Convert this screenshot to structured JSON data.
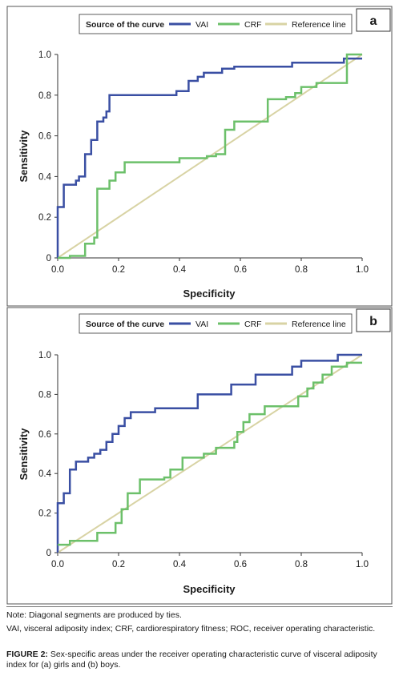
{
  "chart_data": [
    {
      "type": "line",
      "panel": "a",
      "legend": {
        "title": "Source of the curve",
        "position": "top",
        "entries": [
          {
            "name": "VAI",
            "color": "#3a4fa3"
          },
          {
            "name": "CRF",
            "color": "#6cc06a"
          },
          {
            "name": "Reference line",
            "color": "#d8d3a4"
          }
        ]
      },
      "xlabel": "Specificity",
      "ylabel": "Sensitivity",
      "xlim": [
        0,
        1
      ],
      "ylim": [
        0,
        1
      ],
      "xticks": [
        "0.0",
        "0.2",
        "0.4",
        "0.6",
        "0.8",
        "1.0"
      ],
      "yticks": [
        "0",
        "0.2",
        "0.4",
        "0.6",
        "0.8",
        "1.0"
      ],
      "grid": false,
      "series": [
        {
          "name": "VAI",
          "color": "#3a4fa3",
          "points": [
            [
              0,
              0
            ],
            [
              0,
              0.25
            ],
            [
              0.02,
              0.25
            ],
            [
              0.02,
              0.36
            ],
            [
              0.06,
              0.36
            ],
            [
              0.06,
              0.38
            ],
            [
              0.07,
              0.38
            ],
            [
              0.07,
              0.4
            ],
            [
              0.09,
              0.4
            ],
            [
              0.09,
              0.51
            ],
            [
              0.11,
              0.51
            ],
            [
              0.11,
              0.58
            ],
            [
              0.13,
              0.58
            ],
            [
              0.13,
              0.67
            ],
            [
              0.15,
              0.67
            ],
            [
              0.15,
              0.69
            ],
            [
              0.16,
              0.69
            ],
            [
              0.16,
              0.72
            ],
            [
              0.17,
              0.72
            ],
            [
              0.17,
              0.8
            ],
            [
              0.39,
              0.8
            ],
            [
              0.39,
              0.82
            ],
            [
              0.43,
              0.82
            ],
            [
              0.43,
              0.87
            ],
            [
              0.46,
              0.87
            ],
            [
              0.46,
              0.89
            ],
            [
              0.48,
              0.89
            ],
            [
              0.48,
              0.91
            ],
            [
              0.54,
              0.91
            ],
            [
              0.54,
              0.93
            ],
            [
              0.58,
              0.93
            ],
            [
              0.58,
              0.94
            ],
            [
              0.77,
              0.94
            ],
            [
              0.77,
              0.96
            ],
            [
              0.94,
              0.96
            ],
            [
              0.94,
              0.98
            ],
            [
              1.0,
              0.98
            ]
          ]
        },
        {
          "name": "CRF",
          "color": "#6cc06a",
          "points": [
            [
              0,
              0
            ],
            [
              0.04,
              0
            ],
            [
              0.04,
              0.01
            ],
            [
              0.09,
              0.01
            ],
            [
              0.09,
              0.07
            ],
            [
              0.12,
              0.07
            ],
            [
              0.12,
              0.1
            ],
            [
              0.13,
              0.1
            ],
            [
              0.13,
              0.34
            ],
            [
              0.17,
              0.34
            ],
            [
              0.17,
              0.38
            ],
            [
              0.19,
              0.38
            ],
            [
              0.19,
              0.42
            ],
            [
              0.22,
              0.42
            ],
            [
              0.22,
              0.47
            ],
            [
              0.4,
              0.47
            ],
            [
              0.4,
              0.49
            ],
            [
              0.49,
              0.49
            ],
            [
              0.49,
              0.5
            ],
            [
              0.52,
              0.5
            ],
            [
              0.52,
              0.51
            ],
            [
              0.55,
              0.51
            ],
            [
              0.55,
              0.63
            ],
            [
              0.58,
              0.63
            ],
            [
              0.58,
              0.67
            ],
            [
              0.69,
              0.67
            ],
            [
              0.69,
              0.78
            ],
            [
              0.75,
              0.78
            ],
            [
              0.75,
              0.79
            ],
            [
              0.78,
              0.79
            ],
            [
              0.78,
              0.81
            ],
            [
              0.8,
              0.81
            ],
            [
              0.8,
              0.84
            ],
            [
              0.85,
              0.84
            ],
            [
              0.85,
              0.86
            ],
            [
              0.95,
              0.86
            ],
            [
              0.95,
              1.0
            ],
            [
              1.0,
              1.0
            ]
          ]
        },
        {
          "name": "Reference line",
          "color": "#d8d3a4",
          "points": [
            [
              0,
              0
            ],
            [
              1,
              1
            ]
          ]
        }
      ]
    },
    {
      "type": "line",
      "panel": "b",
      "legend": {
        "title": "Source of the curve",
        "position": "top",
        "entries": [
          {
            "name": "VAI",
            "color": "#3a4fa3"
          },
          {
            "name": "CRF",
            "color": "#6cc06a"
          },
          {
            "name": "Reference line",
            "color": "#d8d3a4"
          }
        ]
      },
      "xlabel": "Specificity",
      "ylabel": "Sensitivity",
      "xlim": [
        0,
        1
      ],
      "ylim": [
        0,
        1
      ],
      "xticks": [
        "0.0",
        "0.2",
        "0.4",
        "0.6",
        "0.8",
        "1.0"
      ],
      "yticks": [
        "0",
        "0.2",
        "0.4",
        "0.6",
        "0.8",
        "1.0"
      ],
      "grid": false,
      "series": [
        {
          "name": "VAI",
          "color": "#3a4fa3",
          "points": [
            [
              0,
              0
            ],
            [
              0,
              0.25
            ],
            [
              0.02,
              0.25
            ],
            [
              0.02,
              0.3
            ],
            [
              0.04,
              0.3
            ],
            [
              0.04,
              0.42
            ],
            [
              0.06,
              0.42
            ],
            [
              0.06,
              0.46
            ],
            [
              0.1,
              0.46
            ],
            [
              0.1,
              0.48
            ],
            [
              0.12,
              0.48
            ],
            [
              0.12,
              0.5
            ],
            [
              0.14,
              0.5
            ],
            [
              0.14,
              0.52
            ],
            [
              0.16,
              0.52
            ],
            [
              0.16,
              0.56
            ],
            [
              0.18,
              0.56
            ],
            [
              0.18,
              0.6
            ],
            [
              0.2,
              0.6
            ],
            [
              0.2,
              0.64
            ],
            [
              0.22,
              0.64
            ],
            [
              0.22,
              0.68
            ],
            [
              0.24,
              0.68
            ],
            [
              0.24,
              0.71
            ],
            [
              0.32,
              0.71
            ],
            [
              0.32,
              0.73
            ],
            [
              0.46,
              0.73
            ],
            [
              0.46,
              0.8
            ],
            [
              0.57,
              0.8
            ],
            [
              0.57,
              0.85
            ],
            [
              0.65,
              0.85
            ],
            [
              0.65,
              0.9
            ],
            [
              0.77,
              0.9
            ],
            [
              0.77,
              0.94
            ],
            [
              0.8,
              0.94
            ],
            [
              0.8,
              0.97
            ],
            [
              0.92,
              0.97
            ],
            [
              0.92,
              1.0
            ],
            [
              1.0,
              1.0
            ]
          ]
        },
        {
          "name": "CRF",
          "color": "#6cc06a",
          "points": [
            [
              0,
              0.04
            ],
            [
              0.04,
              0.04
            ],
            [
              0.04,
              0.06
            ],
            [
              0.13,
              0.06
            ],
            [
              0.13,
              0.1
            ],
            [
              0.19,
              0.1
            ],
            [
              0.19,
              0.15
            ],
            [
              0.21,
              0.15
            ],
            [
              0.21,
              0.22
            ],
            [
              0.23,
              0.22
            ],
            [
              0.23,
              0.3
            ],
            [
              0.27,
              0.3
            ],
            [
              0.27,
              0.37
            ],
            [
              0.35,
              0.37
            ],
            [
              0.35,
              0.38
            ],
            [
              0.37,
              0.38
            ],
            [
              0.37,
              0.42
            ],
            [
              0.41,
              0.42
            ],
            [
              0.41,
              0.48
            ],
            [
              0.48,
              0.48
            ],
            [
              0.48,
              0.5
            ],
            [
              0.52,
              0.5
            ],
            [
              0.52,
              0.53
            ],
            [
              0.58,
              0.53
            ],
            [
              0.58,
              0.56
            ],
            [
              0.59,
              0.56
            ],
            [
              0.59,
              0.61
            ],
            [
              0.61,
              0.61
            ],
            [
              0.61,
              0.66
            ],
            [
              0.63,
              0.66
            ],
            [
              0.63,
              0.7
            ],
            [
              0.68,
              0.7
            ],
            [
              0.68,
              0.74
            ],
            [
              0.79,
              0.74
            ],
            [
              0.79,
              0.79
            ],
            [
              0.82,
              0.79
            ],
            [
              0.82,
              0.83
            ],
            [
              0.84,
              0.83
            ],
            [
              0.84,
              0.86
            ],
            [
              0.87,
              0.86
            ],
            [
              0.87,
              0.9
            ],
            [
              0.9,
              0.9
            ],
            [
              0.9,
              0.94
            ],
            [
              0.95,
              0.94
            ],
            [
              0.95,
              0.96
            ],
            [
              1.0,
              0.96
            ]
          ]
        },
        {
          "name": "Reference line",
          "color": "#d8d3a4",
          "points": [
            [
              0,
              0
            ],
            [
              1,
              1
            ]
          ]
        }
      ]
    }
  ],
  "caption": {
    "note_1": "Note: Diagonal segments are produced by ties.",
    "note_2": "VAI, visceral adiposity index; CRF, cardiorespiratory fitness; ROC, receiver operating characteristic.",
    "figure_label": "FIGURE 2:",
    "figure_text": " Sex-specific areas under the receiver operating characteristic curve of visceral adiposity index for (a) girls and (b) boys."
  }
}
